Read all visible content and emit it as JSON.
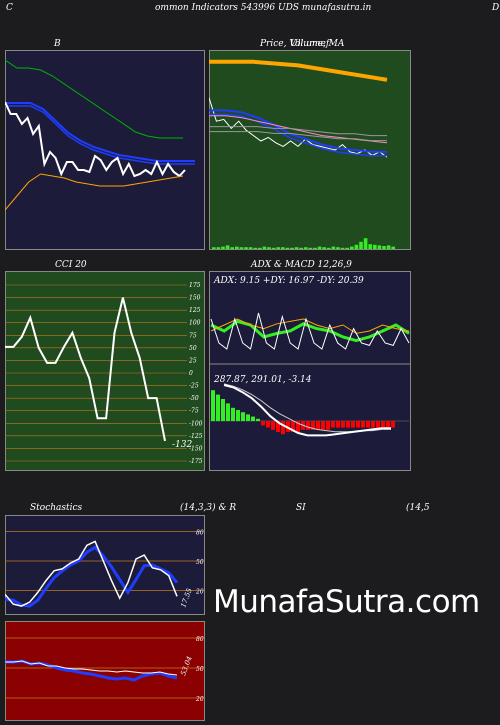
{
  "header": {
    "left_letter": "C",
    "title": "ommon  Indicators 543996  UDS munafasutra.in",
    "right_letter": "D"
  },
  "watermark": "MunafaSutra.com",
  "colors": {
    "page_bg": "#1c1c1e",
    "dark_panel": "#1c1c3a",
    "green_panel": "#1f4b1e",
    "red_panel": "#8b0000",
    "white": "#ffffff",
    "blue": "#1f3cff",
    "orange": "#ffa500",
    "green_line": "#00b400",
    "bright_green": "#33ee22",
    "red_bar": "#ff0000",
    "pink": "#ff88cc",
    "grid": "#c07a1e"
  },
  "chart_data": [
    {
      "id": "bollinger",
      "type": "line",
      "title": "B",
      "series": [
        {
          "color": "green",
          "values": [
            95,
            91,
            91,
            90,
            87,
            83,
            79,
            75,
            71,
            67,
            63,
            59,
            57,
            56,
            56,
            56
          ]
        },
        {
          "color": "blue",
          "values": [
            73,
            73,
            73,
            70,
            64,
            58,
            54,
            51,
            49,
            47,
            46,
            45,
            44,
            44,
            44,
            44
          ]
        },
        {
          "color": "white",
          "values": [
            74,
            68,
            68,
            63,
            66,
            58,
            62,
            43,
            49,
            46,
            38,
            44,
            44,
            40,
            40,
            39,
            47,
            45,
            40,
            44,
            46,
            38,
            43,
            37,
            38,
            40,
            38,
            44,
            38,
            43,
            39,
            37,
            40
          ]
        },
        {
          "color": "orange",
          "values": [
            20,
            27,
            34,
            38,
            37,
            36,
            34,
            33,
            32,
            32,
            32,
            33,
            34,
            35,
            36,
            37
          ]
        }
      ]
    },
    {
      "id": "price_ma",
      "type": "line",
      "title": "Price,  Volume,  MA",
      "title_overlay": "Ull.umef",
      "series": [
        {
          "color": "orange",
          "values": [
            99,
            99,
            99,
            98,
            97,
            95,
            93,
            91,
            89
          ]
        },
        {
          "color": "white",
          "values": [
            79,
            66,
            67,
            62,
            66,
            61,
            58,
            55,
            57,
            54,
            52,
            55,
            52,
            56,
            53,
            52,
            51,
            50,
            53,
            49,
            48,
            50,
            47,
            49,
            46
          ]
        },
        {
          "color": "blue",
          "values": [
            72,
            72,
            71,
            68,
            64,
            59,
            56,
            53,
            51,
            50,
            49,
            49
          ]
        },
        {
          "color": "pink",
          "values": [
            69,
            69,
            68,
            66,
            64,
            62,
            60,
            58,
            57,
            56,
            55,
            54
          ]
        },
        {
          "color": "grey",
          "values": [
            63,
            63,
            63,
            63,
            62,
            62,
            61,
            60,
            59,
            59,
            58,
            58
          ]
        }
      ],
      "volume": [
        0.15,
        0.15,
        0.2,
        0.3,
        0.15,
        0.2,
        0.15,
        0.15,
        0.15,
        0.1,
        0.1,
        0.2,
        0.15,
        0.1,
        0.15,
        0.15,
        0.1,
        0.1,
        0.15,
        0.1,
        0.15,
        0.1,
        0.1,
        0.2,
        0.15,
        0.1,
        0.2,
        0.15,
        0.1,
        0.1,
        0.2,
        0.35,
        0.6,
        0.9,
        0.4,
        0.35,
        0.3,
        0.25,
        0.3,
        0.2
      ]
    },
    {
      "id": "cci",
      "type": "line",
      "title": "CCI 20",
      "ylim": [
        -175,
        175
      ],
      "ticks": [
        "175",
        "150",
        "125",
        "100",
        "75",
        "50",
        "25",
        "0",
        "-25",
        "-50",
        "-75",
        "-100",
        "-125",
        "-150",
        "-175"
      ],
      "values": [
        52,
        52,
        72,
        110,
        50,
        20,
        20,
        52,
        80,
        30,
        -10,
        -90,
        -90,
        80,
        150,
        80,
        30,
        -50,
        -50,
        -135
      ],
      "last_label": "-132"
    },
    {
      "id": "adx",
      "type": "line",
      "title": "ADX  & MACD 12,26,9",
      "label": "ADX: 9.15 +DY: 16.97 -DY: 20.39",
      "series": [
        {
          "color": "green",
          "values": [
            55,
            50,
            58,
            55,
            45,
            48,
            50,
            56,
            52,
            50,
            45,
            42,
            45,
            50,
            55,
            48
          ]
        },
        {
          "color": "orange",
          "values": [
            50,
            55,
            60,
            55,
            52,
            56,
            58,
            60,
            55,
            52,
            55,
            48,
            50,
            55,
            52,
            50
          ]
        },
        {
          "color": "white",
          "values": [
            60,
            40,
            35,
            60,
            40,
            35,
            65,
            40,
            35,
            62,
            40,
            35,
            60,
            40,
            35,
            55,
            40,
            35,
            52,
            40,
            38,
            50,
            40,
            38,
            52,
            40
          ]
        }
      ]
    },
    {
      "id": "macd",
      "type": "bar",
      "label": "287.87,  291.01,  -3.14",
      "histogram": [
        14,
        12,
        10,
        8,
        6,
        5,
        4,
        3,
        2,
        1,
        -2,
        -3,
        -4,
        -5,
        -6,
        -5,
        -5,
        -5,
        -4,
        -4,
        -4,
        -4,
        -4,
        -4,
        -3,
        -3,
        -3,
        -3,
        -3,
        -3,
        -3,
        -3,
        -3,
        -3,
        -3,
        -3,
        -3
      ],
      "macd": [
        30,
        28,
        24,
        19,
        12,
        4,
        -2,
        -6,
        -10,
        -12,
        -12,
        -12,
        -11,
        -10,
        -9,
        -8,
        -7,
        -6,
        -6
      ],
      "signal": [
        31,
        29,
        26,
        22,
        17,
        11,
        6,
        2,
        -2,
        -5,
        -7,
        -8,
        -9,
        -9,
        -9,
        -8,
        -8,
        -7,
        -7
      ]
    },
    {
      "id": "stochastics",
      "type": "line",
      "title": "Stochastics",
      "params": "(14,3,3) & R",
      "ticks": [
        "80",
        "50",
        "20"
      ],
      "series": [
        {
          "color": "blue",
          "values": [
            11,
            10,
            5,
            4,
            10,
            22,
            33,
            40,
            46,
            50,
            59,
            64,
            55,
            44,
            31,
            18,
            31,
            45,
            46,
            42,
            38,
            28
          ]
        },
        {
          "color": "white",
          "values": [
            16,
            6,
            4,
            8,
            18,
            30,
            40,
            42,
            48,
            52,
            66,
            70,
            50,
            30,
            12,
            28,
            52,
            56,
            43,
            41,
            35,
            14
          ]
        }
      ],
      "last_label": "17.55"
    },
    {
      "id": "rsi",
      "type": "line",
      "title": "SI",
      "params": "(14,5",
      "ticks": [
        "80",
        "50",
        "20"
      ],
      "series": [
        {
          "color": "blue",
          "values": [
            56,
            56,
            57,
            54,
            55,
            53,
            50,
            48,
            47,
            45,
            44,
            42,
            40,
            39,
            40,
            38,
            42,
            44,
            45,
            42,
            40
          ]
        },
        {
          "color": "white",
          "values": [
            56,
            56,
            57,
            54,
            55,
            52,
            52,
            50,
            49,
            49,
            48,
            47,
            47,
            46,
            47,
            46,
            45,
            45,
            46,
            44,
            43
          ]
        }
      ],
      "last_label": "53.04"
    }
  ]
}
